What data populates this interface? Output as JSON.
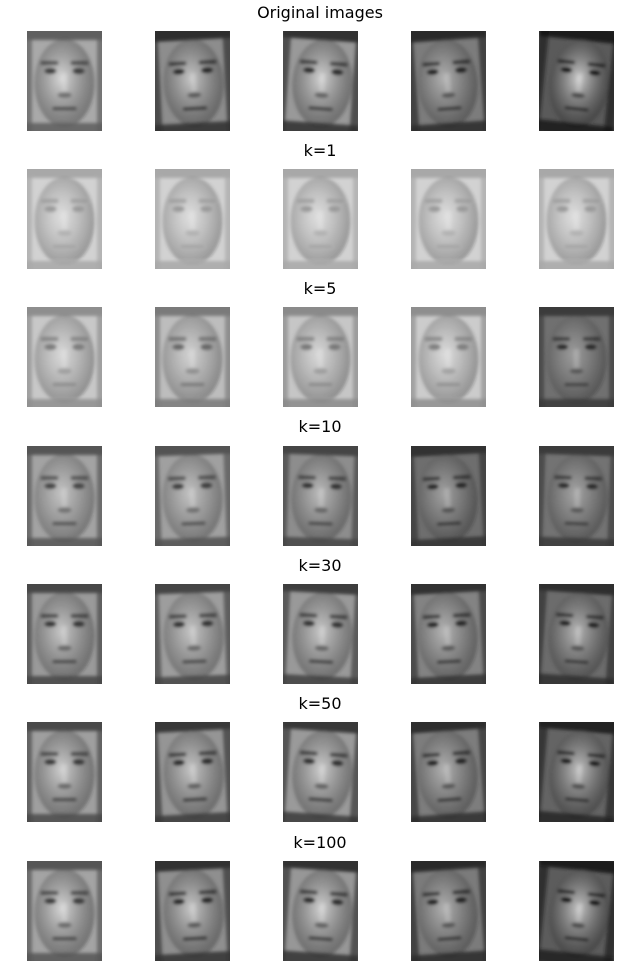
{
  "rows": [
    {
      "title": "Original images",
      "faces": [
        {
          "base": "#a9a9a9",
          "hair": "#5e5e5e",
          "eye": "#3c3c3c",
          "mouth": "#4a4a4a",
          "light": 0.55,
          "dx": 0,
          "angle": 0
        },
        {
          "base": "#8d8d8d",
          "hair": "#2f2f2f",
          "eye": "#262626",
          "mouth": "#303030",
          "light": 0.5,
          "dx": 1,
          "angle": -3
        },
        {
          "base": "#999999",
          "hair": "#303030",
          "eye": "#2c2c2c",
          "mouth": "#3a3a3a",
          "light": 0.55,
          "dx": 2,
          "angle": 4
        },
        {
          "base": "#7c7c7c",
          "hair": "#2a2a2a",
          "eye": "#222222",
          "mouth": "#333333",
          "light": 0.4,
          "dx": -1,
          "angle": -4
        },
        {
          "base": "#5a5a5a",
          "hair": "#1a1a1a",
          "eye": "#141414",
          "mouth": "#222222",
          "light": 0.7,
          "dx": 3,
          "angle": 6
        }
      ]
    },
    {
      "title": "k=1",
      "faces": [
        {
          "base": "#d2d2d2",
          "hair": "#a8a8a8",
          "eye": "#9a9a9a",
          "mouth": "#a3a3a3",
          "light": 0.25,
          "dx": 0,
          "angle": 0
        },
        {
          "base": "#d2d2d2",
          "hair": "#a8a8a8",
          "eye": "#9a9a9a",
          "mouth": "#a3a3a3",
          "light": 0.25,
          "dx": 0,
          "angle": 0
        },
        {
          "base": "#d2d2d2",
          "hair": "#a8a8a8",
          "eye": "#9a9a9a",
          "mouth": "#a3a3a3",
          "light": 0.25,
          "dx": 0,
          "angle": 0
        },
        {
          "base": "#d2d2d2",
          "hair": "#a8a8a8",
          "eye": "#9a9a9a",
          "mouth": "#a3a3a3",
          "light": 0.25,
          "dx": 0,
          "angle": 0
        },
        {
          "base": "#d2d2d2",
          "hair": "#a8a8a8",
          "eye": "#9a9a9a",
          "mouth": "#a3a3a3",
          "light": 0.25,
          "dx": 0,
          "angle": 0
        }
      ]
    },
    {
      "title": "k=5",
      "faces": [
        {
          "base": "#c8c8c8",
          "hair": "#8e8e8e",
          "eye": "#7a7a7a",
          "mouth": "#8a8a8a",
          "light": 0.3,
          "dx": 0,
          "angle": 0
        },
        {
          "base": "#bdbdbd",
          "hair": "#7a7a7a",
          "eye": "#666666",
          "mouth": "#777777",
          "light": 0.3,
          "dx": 0,
          "angle": 0
        },
        {
          "base": "#c6c6c6",
          "hair": "#8a8a8a",
          "eye": "#777777",
          "mouth": "#888888",
          "light": 0.3,
          "dx": 0,
          "angle": 0
        },
        {
          "base": "#cccccc",
          "hair": "#8e8e8e",
          "eye": "#7e7e7e",
          "mouth": "#8e8e8e",
          "light": 0.3,
          "dx": 0,
          "angle": 0
        },
        {
          "base": "#707070",
          "hair": "#3a3a3a",
          "eye": "#2c2c2c",
          "mouth": "#3c3c3c",
          "light": 0.3,
          "dx": 0,
          "angle": 0
        }
      ]
    },
    {
      "title": "k=10",
      "faces": [
        {
          "base": "#a3a3a3",
          "hair": "#555555",
          "eye": "#444444",
          "mouth": "#505050",
          "light": 0.35,
          "dx": 0,
          "angle": 0
        },
        {
          "base": "#a0a0a0",
          "hair": "#525252",
          "eye": "#3e3e3e",
          "mouth": "#4e4e4e",
          "light": 0.35,
          "dx": 0,
          "angle": -2
        },
        {
          "base": "#8d8d8d",
          "hair": "#444444",
          "eye": "#333333",
          "mouth": "#444444",
          "light": 0.4,
          "dx": 1,
          "angle": 2
        },
        {
          "base": "#6e6e6e",
          "hair": "#333333",
          "eye": "#252525",
          "mouth": "#333333",
          "light": 0.35,
          "dx": -1,
          "angle": -3
        },
        {
          "base": "#737373",
          "hair": "#3a3a3a",
          "eye": "#2a2a2a",
          "mouth": "#3a3a3a",
          "light": 0.35,
          "dx": 1,
          "angle": 2
        }
      ]
    },
    {
      "title": "k=30",
      "faces": [
        {
          "base": "#9a9a9a",
          "hair": "#474747",
          "eye": "#353535",
          "mouth": "#454545",
          "light": 0.45,
          "dx": 0,
          "angle": 0
        },
        {
          "base": "#9d9d9d",
          "hair": "#444444",
          "eye": "#333333",
          "mouth": "#444444",
          "light": 0.4,
          "dx": 1,
          "angle": -2
        },
        {
          "base": "#999999",
          "hair": "#3e3e3e",
          "eye": "#303030",
          "mouth": "#3e3e3e",
          "light": 0.45,
          "dx": 2,
          "angle": 3
        },
        {
          "base": "#838383",
          "hair": "#333333",
          "eye": "#262626",
          "mouth": "#353535",
          "light": 0.4,
          "dx": -1,
          "angle": -3
        },
        {
          "base": "#6c6c6c",
          "hair": "#2e2e2e",
          "eye": "#222222",
          "mouth": "#333333",
          "light": 0.5,
          "dx": 2,
          "angle": 4
        }
      ]
    },
    {
      "title": "k=50",
      "faces": [
        {
          "base": "#9f9f9f",
          "hair": "#4a4a4a",
          "eye": "#383838",
          "mouth": "#444444",
          "light": 0.5,
          "dx": 0,
          "angle": 0
        },
        {
          "base": "#959595",
          "hair": "#393939",
          "eye": "#2c2c2c",
          "mouth": "#383838",
          "light": 0.45,
          "dx": 1,
          "angle": -3
        },
        {
          "base": "#9a9a9a",
          "hair": "#383838",
          "eye": "#2d2d2d",
          "mouth": "#3a3a3a",
          "light": 0.5,
          "dx": 2,
          "angle": 4
        },
        {
          "base": "#7d7d7d",
          "hair": "#2d2d2d",
          "eye": "#232323",
          "mouth": "#333333",
          "light": 0.4,
          "dx": -1,
          "angle": -4
        },
        {
          "base": "#646464",
          "hair": "#242424",
          "eye": "#1b1b1b",
          "mouth": "#2a2a2a",
          "light": 0.6,
          "dx": 3,
          "angle": 5
        }
      ]
    },
    {
      "title": "k=100",
      "faces": [
        {
          "base": "#a4a4a4",
          "hair": "#555555",
          "eye": "#3a3a3a",
          "mouth": "#454545",
          "light": 0.55,
          "dx": 0,
          "angle": 0
        },
        {
          "base": "#8f8f8f",
          "hair": "#323232",
          "eye": "#272727",
          "mouth": "#313131",
          "light": 0.5,
          "dx": 1,
          "angle": -3
        },
        {
          "base": "#979797",
          "hair": "#333333",
          "eye": "#2b2b2b",
          "mouth": "#383838",
          "light": 0.55,
          "dx": 2,
          "angle": 4
        },
        {
          "base": "#7b7b7b",
          "hair": "#2a2a2a",
          "eye": "#222222",
          "mouth": "#333333",
          "light": 0.4,
          "dx": -1,
          "angle": -4
        },
        {
          "base": "#5c5c5c",
          "hair": "#1c1c1c",
          "eye": "#161616",
          "mouth": "#242424",
          "light": 0.65,
          "dx": 3,
          "angle": 6
        }
      ]
    }
  ]
}
